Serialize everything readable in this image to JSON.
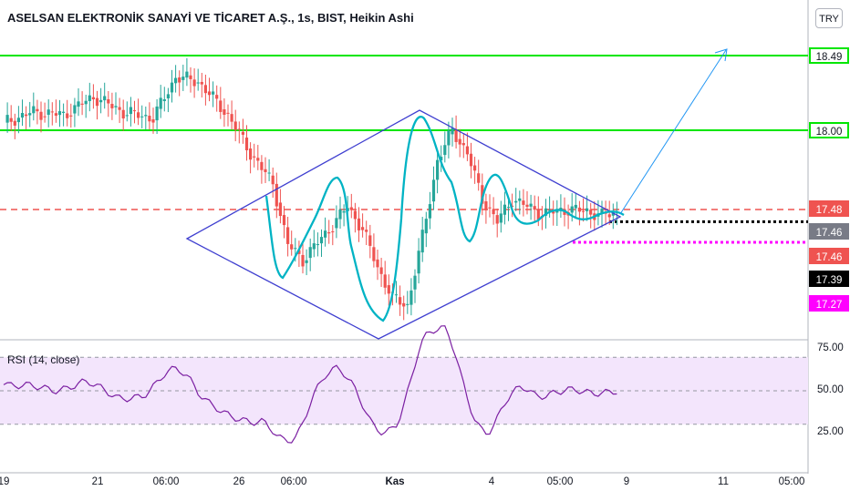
{
  "title": "ASELSAN ELEKTRONİK SANAYİ VE TİCARET A.Ş., 1s, BIST, Heikin Ashi",
  "currency_button": "TRY",
  "price_badges": [
    {
      "label": "18.49",
      "value": 18.49,
      "bg": "#ffffff",
      "fg": "#131722",
      "border": "#00e600"
    },
    {
      "label": "18.00",
      "value": 18.0,
      "bg": "#ffffff",
      "fg": "#131722",
      "border": "#00e600"
    },
    {
      "label": "17.48",
      "value": 17.48,
      "bg": "#ef5350",
      "fg": "#ffffff",
      "border": "#ef5350"
    },
    {
      "label": "17.46",
      "value": 17.46,
      "bg": "#787b86",
      "fg": "#ffffff",
      "border": "#787b86"
    },
    {
      "label": "17.46",
      "value": 17.46,
      "bg": "#ef5350",
      "fg": "#ffffff",
      "border": "#ef5350"
    },
    {
      "label": "17.39",
      "value": 17.39,
      "bg": "#000000",
      "fg": "#ffffff",
      "border": "#000000"
    },
    {
      "label": "17.27",
      "value": 17.27,
      "bg": "#ff00ff",
      "fg": "#ffffff",
      "border": "#ff00ff"
    }
  ],
  "rsi": {
    "label": "RSI (14, close)",
    "ticks": [
      {
        "label": "75.00",
        "value": 75
      },
      {
        "label": "50.00",
        "value": 50
      },
      {
        "label": "25.00",
        "value": 25
      }
    ],
    "band": [
      30,
      70
    ],
    "line_color": "#7b1fa2",
    "band_color": "#f3e5fc"
  },
  "x_ticks": [
    {
      "label": "19",
      "x": 4
    },
    {
      "label": "21",
      "x": 107
    },
    {
      "label": "06:00",
      "x": 182
    },
    {
      "label": "26",
      "x": 262
    },
    {
      "label": "06:00",
      "x": 322
    },
    {
      "label": "Kas",
      "x": 433
    },
    {
      "label": "4",
      "x": 539
    },
    {
      "label": "05:00",
      "x": 614
    },
    {
      "label": "9",
      "x": 687
    },
    {
      "label": "11",
      "x": 793
    },
    {
      "label": "05:00",
      "x": 868
    }
  ],
  "colors": {
    "up": "#26a69a",
    "down": "#ef5350",
    "support": "#00e600",
    "pattern": "#3f3fd0",
    "curve": "#00b3c4",
    "arrow": "#2196f3"
  },
  "chart_data": {
    "type": "candlestick",
    "series_type": "Heikin Ashi",
    "symbol": "ASELSAN",
    "exchange": "BIST",
    "interval": "1s",
    "currency": "TRY",
    "horizontal_levels": [
      18.49,
      18.0,
      17.48,
      17.46,
      17.27
    ],
    "last_price": 17.46,
    "rsi_range": [
      0,
      100
    ],
    "approx_close_path": [
      {
        "i": 0,
        "v": 18.05
      },
      {
        "i": 8,
        "v": 18.12
      },
      {
        "i": 16,
        "v": 18.1
      },
      {
        "i": 24,
        "v": 18.22
      },
      {
        "i": 32,
        "v": 18.12
      },
      {
        "i": 40,
        "v": 18.08
      },
      {
        "i": 46,
        "v": 18.35
      },
      {
        "i": 52,
        "v": 18.32
      },
      {
        "i": 60,
        "v": 18.1
      },
      {
        "i": 66,
        "v": 17.85
      },
      {
        "i": 72,
        "v": 17.65
      },
      {
        "i": 76,
        "v": 17.25
      },
      {
        "i": 80,
        "v": 17.15
      },
      {
        "i": 86,
        "v": 17.32
      },
      {
        "i": 92,
        "v": 17.5
      },
      {
        "i": 96,
        "v": 17.35
      },
      {
        "i": 100,
        "v": 17.1
      },
      {
        "i": 104,
        "v": 16.9
      },
      {
        "i": 108,
        "v": 16.85
      },
      {
        "i": 112,
        "v": 17.3
      },
      {
        "i": 116,
        "v": 17.8
      },
      {
        "i": 120,
        "v": 18.0
      },
      {
        "i": 124,
        "v": 17.85
      },
      {
        "i": 128,
        "v": 17.55
      },
      {
        "i": 132,
        "v": 17.4
      },
      {
        "i": 136,
        "v": 17.55
      },
      {
        "i": 140,
        "v": 17.5
      },
      {
        "i": 144,
        "v": 17.45
      },
      {
        "i": 150,
        "v": 17.48
      },
      {
        "i": 156,
        "v": 17.47
      },
      {
        "i": 160,
        "v": 17.44
      },
      {
        "i": 164,
        "v": 17.46
      }
    ]
  }
}
